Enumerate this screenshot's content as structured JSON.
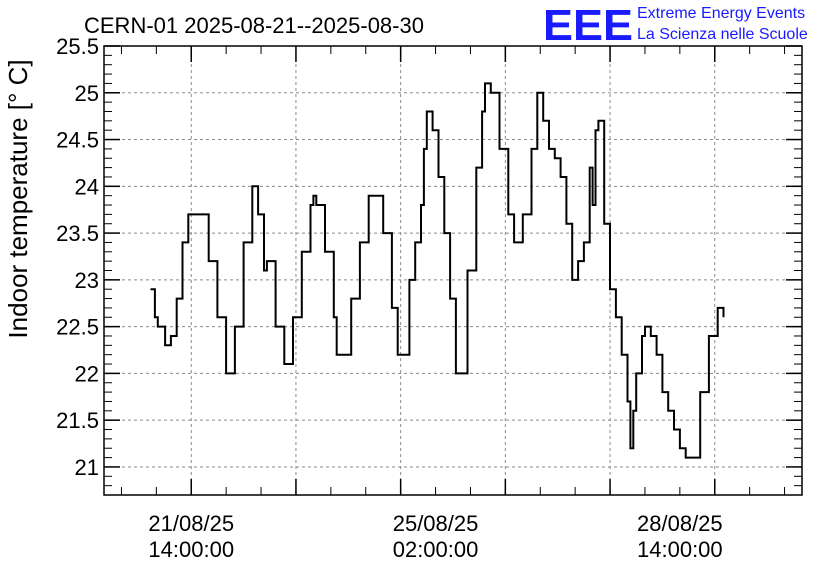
{
  "header": {
    "title": "CERN-01 2025-08-21--2025-08-30",
    "logo_text": "EEE",
    "logo_line1": "Extreme Energy Events",
    "logo_line2": "La Scienza nelle Scuole",
    "logo_color": "#1a1aff"
  },
  "chart_data": {
    "type": "line",
    "ylabel": "Indoor temperature [° C]",
    "xlabel": "",
    "ylim": [
      20.7,
      25.5
    ],
    "xlim": [
      "2025-08-20T08:00",
      "2025-08-30T08:00"
    ],
    "grid": true,
    "y_ticks": [
      "21",
      "21.5",
      "22",
      "22.5",
      "23",
      "23.5",
      "24",
      "24.5",
      "25",
      "25.5"
    ],
    "x_ticks": [
      {
        "t": "2025-08-21T14:00",
        "line1": "21/08/25",
        "line2": "14:00:00"
      },
      {
        "t": "2025-08-25T02:00",
        "line1": "25/08/25",
        "line2": "02:00:00"
      },
      {
        "t": "2025-08-28T14:00",
        "line1": "28/08/25",
        "line2": "14:00:00"
      }
    ],
    "series": [
      {
        "color": "#000000",
        "points": [
          [
            "2025-08-21T00:00",
            22.9
          ],
          [
            "2025-08-21T01:30",
            22.6
          ],
          [
            "2025-08-21T02:30",
            22.5
          ],
          [
            "2025-08-21T05:00",
            22.3
          ],
          [
            "2025-08-21T07:00",
            22.4
          ],
          [
            "2025-08-21T09:00",
            22.8
          ],
          [
            "2025-08-21T11:00",
            23.4
          ],
          [
            "2025-08-21T13:00",
            23.7
          ],
          [
            "2025-08-21T17:00",
            23.7
          ],
          [
            "2025-08-21T20:00",
            23.2
          ],
          [
            "2025-08-21T23:00",
            22.6
          ],
          [
            "2025-08-22T02:00",
            22.0
          ],
          [
            "2025-08-22T05:00",
            22.5
          ],
          [
            "2025-08-22T08:00",
            23.4
          ],
          [
            "2025-08-22T11:00",
            24.0
          ],
          [
            "2025-08-22T13:00",
            23.7
          ],
          [
            "2025-08-22T15:00",
            23.1
          ],
          [
            "2025-08-22T16:00",
            23.2
          ],
          [
            "2025-08-22T19:00",
            22.5
          ],
          [
            "2025-08-22T22:00",
            22.1
          ],
          [
            "2025-08-23T01:00",
            22.6
          ],
          [
            "2025-08-23T04:00",
            23.3
          ],
          [
            "2025-08-23T07:00",
            23.8
          ],
          [
            "2025-08-23T08:00",
            23.9
          ],
          [
            "2025-08-23T09:00",
            23.8
          ],
          [
            "2025-08-23T12:00",
            23.3
          ],
          [
            "2025-08-23T15:00",
            22.6
          ],
          [
            "2025-08-23T16:00",
            22.2
          ],
          [
            "2025-08-23T18:00",
            22.2
          ],
          [
            "2025-08-23T21:00",
            22.8
          ],
          [
            "2025-08-24T00:00",
            23.4
          ],
          [
            "2025-08-24T03:00",
            23.9
          ],
          [
            "2025-08-24T05:00",
            23.9
          ],
          [
            "2025-08-24T08:00",
            23.5
          ],
          [
            "2025-08-24T11:00",
            22.7
          ],
          [
            "2025-08-24T13:00",
            22.2
          ],
          [
            "2025-08-24T14:00",
            22.2
          ],
          [
            "2025-08-24T17:00",
            23.0
          ],
          [
            "2025-08-24T19:00",
            23.4
          ],
          [
            "2025-08-24T21:00",
            23.8
          ],
          [
            "2025-08-24T22:00",
            24.4
          ],
          [
            "2025-08-24T23:00",
            24.8
          ],
          [
            "2025-08-25T01:00",
            24.6
          ],
          [
            "2025-08-25T03:00",
            24.1
          ],
          [
            "2025-08-25T05:00",
            23.5
          ],
          [
            "2025-08-25T07:00",
            22.8
          ],
          [
            "2025-08-25T09:00",
            22.0
          ],
          [
            "2025-08-25T10:00",
            22.0
          ],
          [
            "2025-08-25T13:00",
            23.1
          ],
          [
            "2025-08-25T16:00",
            24.2
          ],
          [
            "2025-08-25T18:00",
            24.8
          ],
          [
            "2025-08-25T19:00",
            25.1
          ],
          [
            "2025-08-25T21:00",
            25.0
          ],
          [
            "2025-08-26T00:00",
            24.4
          ],
          [
            "2025-08-26T03:00",
            23.7
          ],
          [
            "2025-08-26T05:00",
            23.4
          ],
          [
            "2025-08-26T06:00",
            23.4
          ],
          [
            "2025-08-26T08:00",
            23.7
          ],
          [
            "2025-08-26T11:00",
            24.4
          ],
          [
            "2025-08-26T13:00",
            25.0
          ],
          [
            "2025-08-26T15:00",
            24.7
          ],
          [
            "2025-08-26T17:00",
            24.4
          ],
          [
            "2025-08-26T19:00",
            24.3
          ],
          [
            "2025-08-26T21:00",
            24.1
          ],
          [
            "2025-08-26T23:00",
            23.6
          ],
          [
            "2025-08-27T01:00",
            23.0
          ],
          [
            "2025-08-27T02:00",
            23.0
          ],
          [
            "2025-08-27T03:00",
            23.2
          ],
          [
            "2025-08-27T05:00",
            23.4
          ],
          [
            "2025-08-27T07:00",
            24.2
          ],
          [
            "2025-08-27T08:00",
            23.8
          ],
          [
            "2025-08-27T09:00",
            24.6
          ],
          [
            "2025-08-27T10:00",
            24.7
          ],
          [
            "2025-08-27T12:00",
            23.6
          ],
          [
            "2025-08-27T14:00",
            22.9
          ],
          [
            "2025-08-27T16:00",
            22.6
          ],
          [
            "2025-08-27T18:00",
            22.2
          ],
          [
            "2025-08-27T20:00",
            21.7
          ],
          [
            "2025-08-27T21:00",
            21.2
          ],
          [
            "2025-08-27T22:00",
            21.6
          ],
          [
            "2025-08-27T23:00",
            22.0
          ],
          [
            "2025-08-28T01:00",
            22.4
          ],
          [
            "2025-08-28T02:00",
            22.5
          ],
          [
            "2025-08-28T04:00",
            22.4
          ],
          [
            "2025-08-28T06:00",
            22.2
          ],
          [
            "2025-08-28T08:00",
            21.8
          ],
          [
            "2025-08-28T10:00",
            21.6
          ],
          [
            "2025-08-28T12:00",
            21.4
          ],
          [
            "2025-08-28T14:00",
            21.2
          ],
          [
            "2025-08-28T16:00",
            21.1
          ],
          [
            "2025-08-28T18:00",
            21.1
          ],
          [
            "2025-08-28T21:00",
            21.8
          ],
          [
            "2025-08-29T00:00",
            22.4
          ],
          [
            "2025-08-29T03:00",
            22.7
          ],
          [
            "2025-08-29T05:00",
            22.6
          ]
        ]
      }
    ]
  }
}
